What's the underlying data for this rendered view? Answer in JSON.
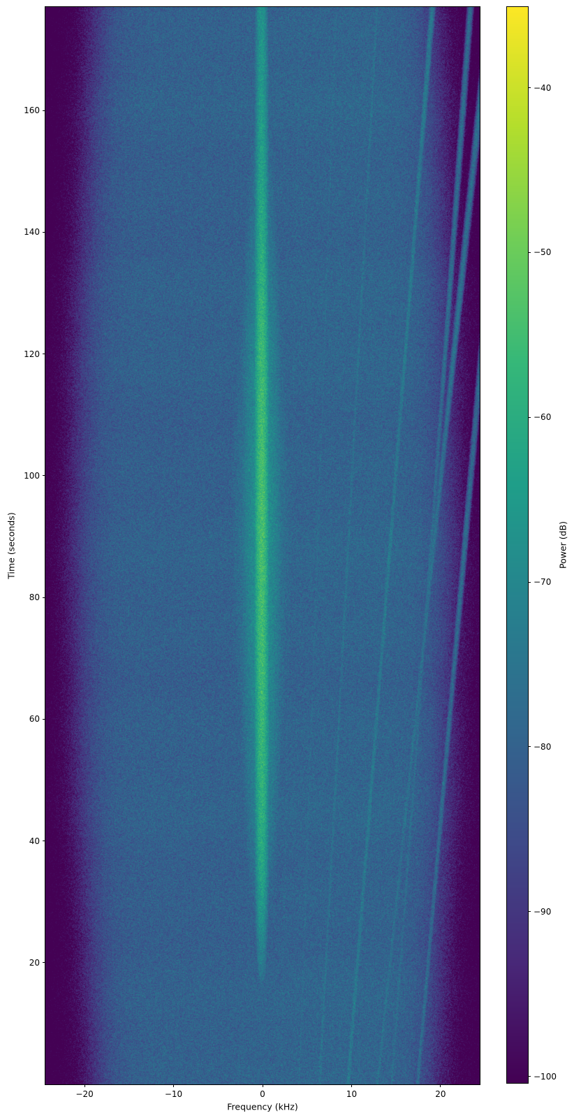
{
  "chart_data": {
    "type": "heatmap",
    "subtype": "spectrogram",
    "title": "",
    "xlabel": "Frequency (kHz)",
    "ylabel": "Time (seconds)",
    "xlim": [
      -24.4,
      24.4
    ],
    "ylim": [
      0,
      177
    ],
    "xticks": [
      -20,
      -10,
      0,
      10,
      20
    ],
    "xtick_labels": [
      "−20",
      "−10",
      "0",
      "10",
      "20"
    ],
    "yticks": [
      20,
      40,
      60,
      80,
      100,
      120,
      140,
      160
    ],
    "ytick_labels": [
      "20",
      "40",
      "60",
      "80",
      "100",
      "120",
      "140",
      "160"
    ],
    "grid": false,
    "legend": null,
    "colorbar": {
      "label": "Power (dB)",
      "ticks": [
        -40,
        -50,
        -60,
        -70,
        -80,
        -90,
        -100
      ],
      "tick_labels": [
        "−40",
        "−50",
        "−60",
        "−70",
        "−80",
        "−90",
        "−100"
      ],
      "vmin": -100.4,
      "vmax": -35.1,
      "colormap": "viridis",
      "position": "right"
    },
    "viridis_stops": [
      [
        68,
        1,
        84
      ],
      [
        72,
        40,
        120
      ],
      [
        62,
        74,
        137
      ],
      [
        49,
        104,
        142
      ],
      [
        38,
        130,
        142
      ],
      [
        31,
        158,
        137
      ],
      [
        53,
        183,
        121
      ],
      [
        109,
        205,
        89
      ],
      [
        180,
        222,
        44
      ],
      [
        253,
        231,
        37
      ]
    ],
    "noise_floor_db": -80.3,
    "noise_sigma_db": 3.2,
    "right_half_boost_db": 1.1,
    "band_edges": {
      "left_khz_at_ends": -19.2,
      "left_khz_at_mid": -21.4,
      "right_khz_at_ends": 19.6,
      "right_khz_at_mid": 21.6,
      "rolloff_khz": 1.4,
      "attenuation_db": 26
    },
    "carrier": {
      "freq_khz": -0.1,
      "core_sigma_khz": 0.32,
      "skirt_sigma_khz": 1.1,
      "glow_sigma_khz": 2.0,
      "skirt_drop_db": 13,
      "glow_drop_db": 19,
      "power_profile_t_db": [
        [
          0,
          -96
        ],
        [
          8,
          -92
        ],
        [
          12,
          -84
        ],
        [
          16,
          -78
        ],
        [
          20,
          -73
        ],
        [
          26,
          -68
        ],
        [
          32,
          -64
        ],
        [
          40,
          -60.5
        ],
        [
          48,
          -58.5
        ],
        [
          56,
          -57.5
        ],
        [
          64,
          -56.5
        ],
        [
          72,
          -55.5
        ],
        [
          80,
          -55
        ],
        [
          88,
          -54.4
        ],
        [
          96,
          -54.4
        ],
        [
          104,
          -55
        ],
        [
          112,
          -55.8
        ],
        [
          120,
          -56.5
        ],
        [
          128,
          -58
        ],
        [
          136,
          -60
        ],
        [
          144,
          -62
        ],
        [
          152,
          -63.5
        ],
        [
          160,
          -65
        ],
        [
          168,
          -66
        ],
        [
          177,
          -67
        ]
      ]
    },
    "diagonal_lines": [
      {
        "f0_khz": 9.6,
        "slope_khz_per_s": 0.0535,
        "height_db": 6.0,
        "sigma_khz": 0.16
      },
      {
        "f0_khz": 6.4,
        "slope_khz_per_s": 0.0365,
        "height_db": 4.0,
        "sigma_khz": 0.14
      },
      {
        "f0_khz": 12.9,
        "slope_khz_per_s": 0.0715,
        "height_db": 4.0,
        "sigma_khz": 0.15
      },
      {
        "f0_khz": 14.5,
        "slope_khz_per_s": 0.05,
        "height_db": 3.0,
        "sigma_khz": 0.14
      },
      {
        "f0_khz": 4.1,
        "slope_khz_per_s": 0.0235,
        "height_db": 2.5,
        "sigma_khz": 0.13
      },
      {
        "f0_khz": 2.1,
        "slope_khz_per_s": 0.012,
        "height_db": 2.0,
        "sigma_khz": 0.12
      },
      {
        "f0_khz": 17.4,
        "slope_khz_per_s": 0.06,
        "height_db": 2.5,
        "sigma_khz": 0.14
      }
    ],
    "seed": 42
  }
}
